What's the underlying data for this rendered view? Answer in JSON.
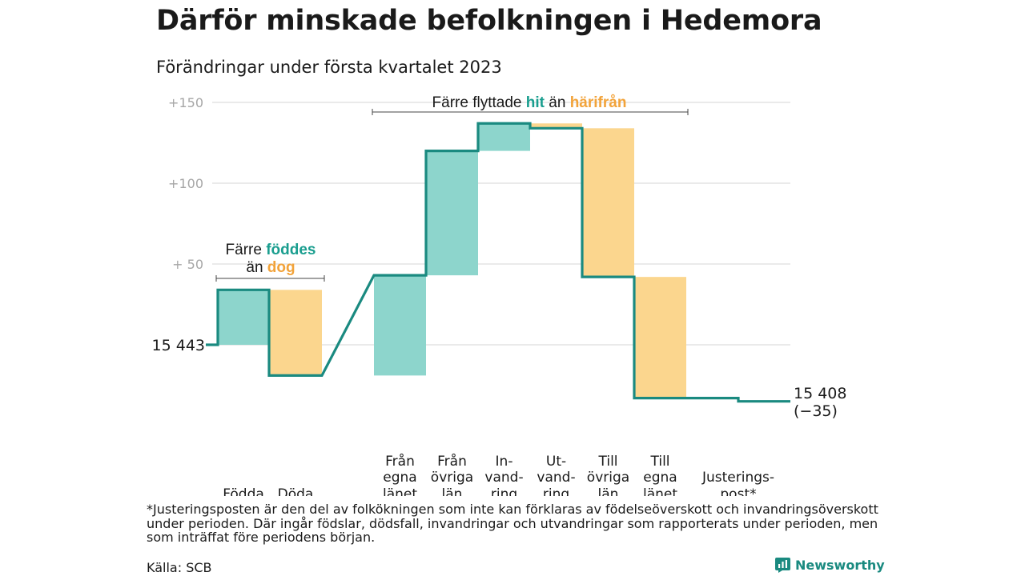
{
  "title": "Därför minskade befolkningen i Hedemora",
  "subtitle": "Förändringar under första kvartalet 2023",
  "footnote": "*Justeringsposten är den del av folkökningen som inte kan förklaras av födelseöverskott och invandringsöverskott under perioden. Där ingår födslar, dödsfall, invandringar och utvandringar som rapporterats under perioden, men som inträffat före periodens början.",
  "source": "Källa: SCB",
  "brand": "Newsworthy",
  "colors": {
    "teal": "#1a9e8f",
    "teal_fill": "#8dd5cc",
    "orange": "#f2a33a",
    "orange_fill": "#fbd68e",
    "grid": "#dddddd",
    "line": "#1a8a80"
  },
  "chart_data": {
    "type": "waterfall",
    "start": {
      "value": 15443,
      "label": "15 443"
    },
    "end": {
      "value": 15408,
      "label_lines": [
        "15 408",
        "(−35)"
      ]
    },
    "ytick_labels": [
      "+150",
      "+100",
      "+ 50"
    ],
    "yticks": [
      150,
      100,
      50,
      0
    ],
    "ylim": [
      -40,
      150
    ],
    "steps": [
      {
        "label_lines": [
          "Födda"
        ],
        "change": 34,
        "kind": "plus"
      },
      {
        "label_lines": [
          "Döda"
        ],
        "change": -53,
        "kind": "minus"
      },
      {
        "label_lines": [
          "Från",
          "egna",
          "länet"
        ],
        "change": 62,
        "kind": "plus"
      },
      {
        "label_lines": [
          "Från",
          "övriga",
          "län"
        ],
        "change": 77,
        "kind": "plus"
      },
      {
        "label_lines": [
          "In-",
          "vand-",
          "ring"
        ],
        "change": 17,
        "kind": "plus"
      },
      {
        "label_lines": [
          "Ut-",
          "vand-",
          "ring"
        ],
        "change": -3,
        "kind": "minus"
      },
      {
        "label_lines": [
          "Till",
          "övriga",
          "län"
        ],
        "change": -92,
        "kind": "minus"
      },
      {
        "label_lines": [
          "Till",
          "egna",
          "länet"
        ],
        "change": -75,
        "kind": "minus"
      },
      {
        "label_lines": [
          "Justerings-",
          "post*"
        ],
        "change": -2,
        "kind": "adjust"
      }
    ],
    "annotations": [
      {
        "id": "births",
        "lines": [
          [
            {
              "text": "Färre ",
              "style": "plain"
            },
            {
              "text": "föddes",
              "style": "teal"
            }
          ],
          [
            {
              "text": "än ",
              "style": "plain"
            },
            {
              "text": "dog",
              "style": "orange"
            }
          ]
        ]
      },
      {
        "id": "moves",
        "lines": [
          [
            {
              "text": "Färre flyttade ",
              "style": "plain"
            },
            {
              "text": "hit",
              "style": "teal"
            },
            {
              "text": " än ",
              "style": "plain"
            },
            {
              "text": "härifrån",
              "style": "orange"
            }
          ]
        ]
      }
    ]
  }
}
